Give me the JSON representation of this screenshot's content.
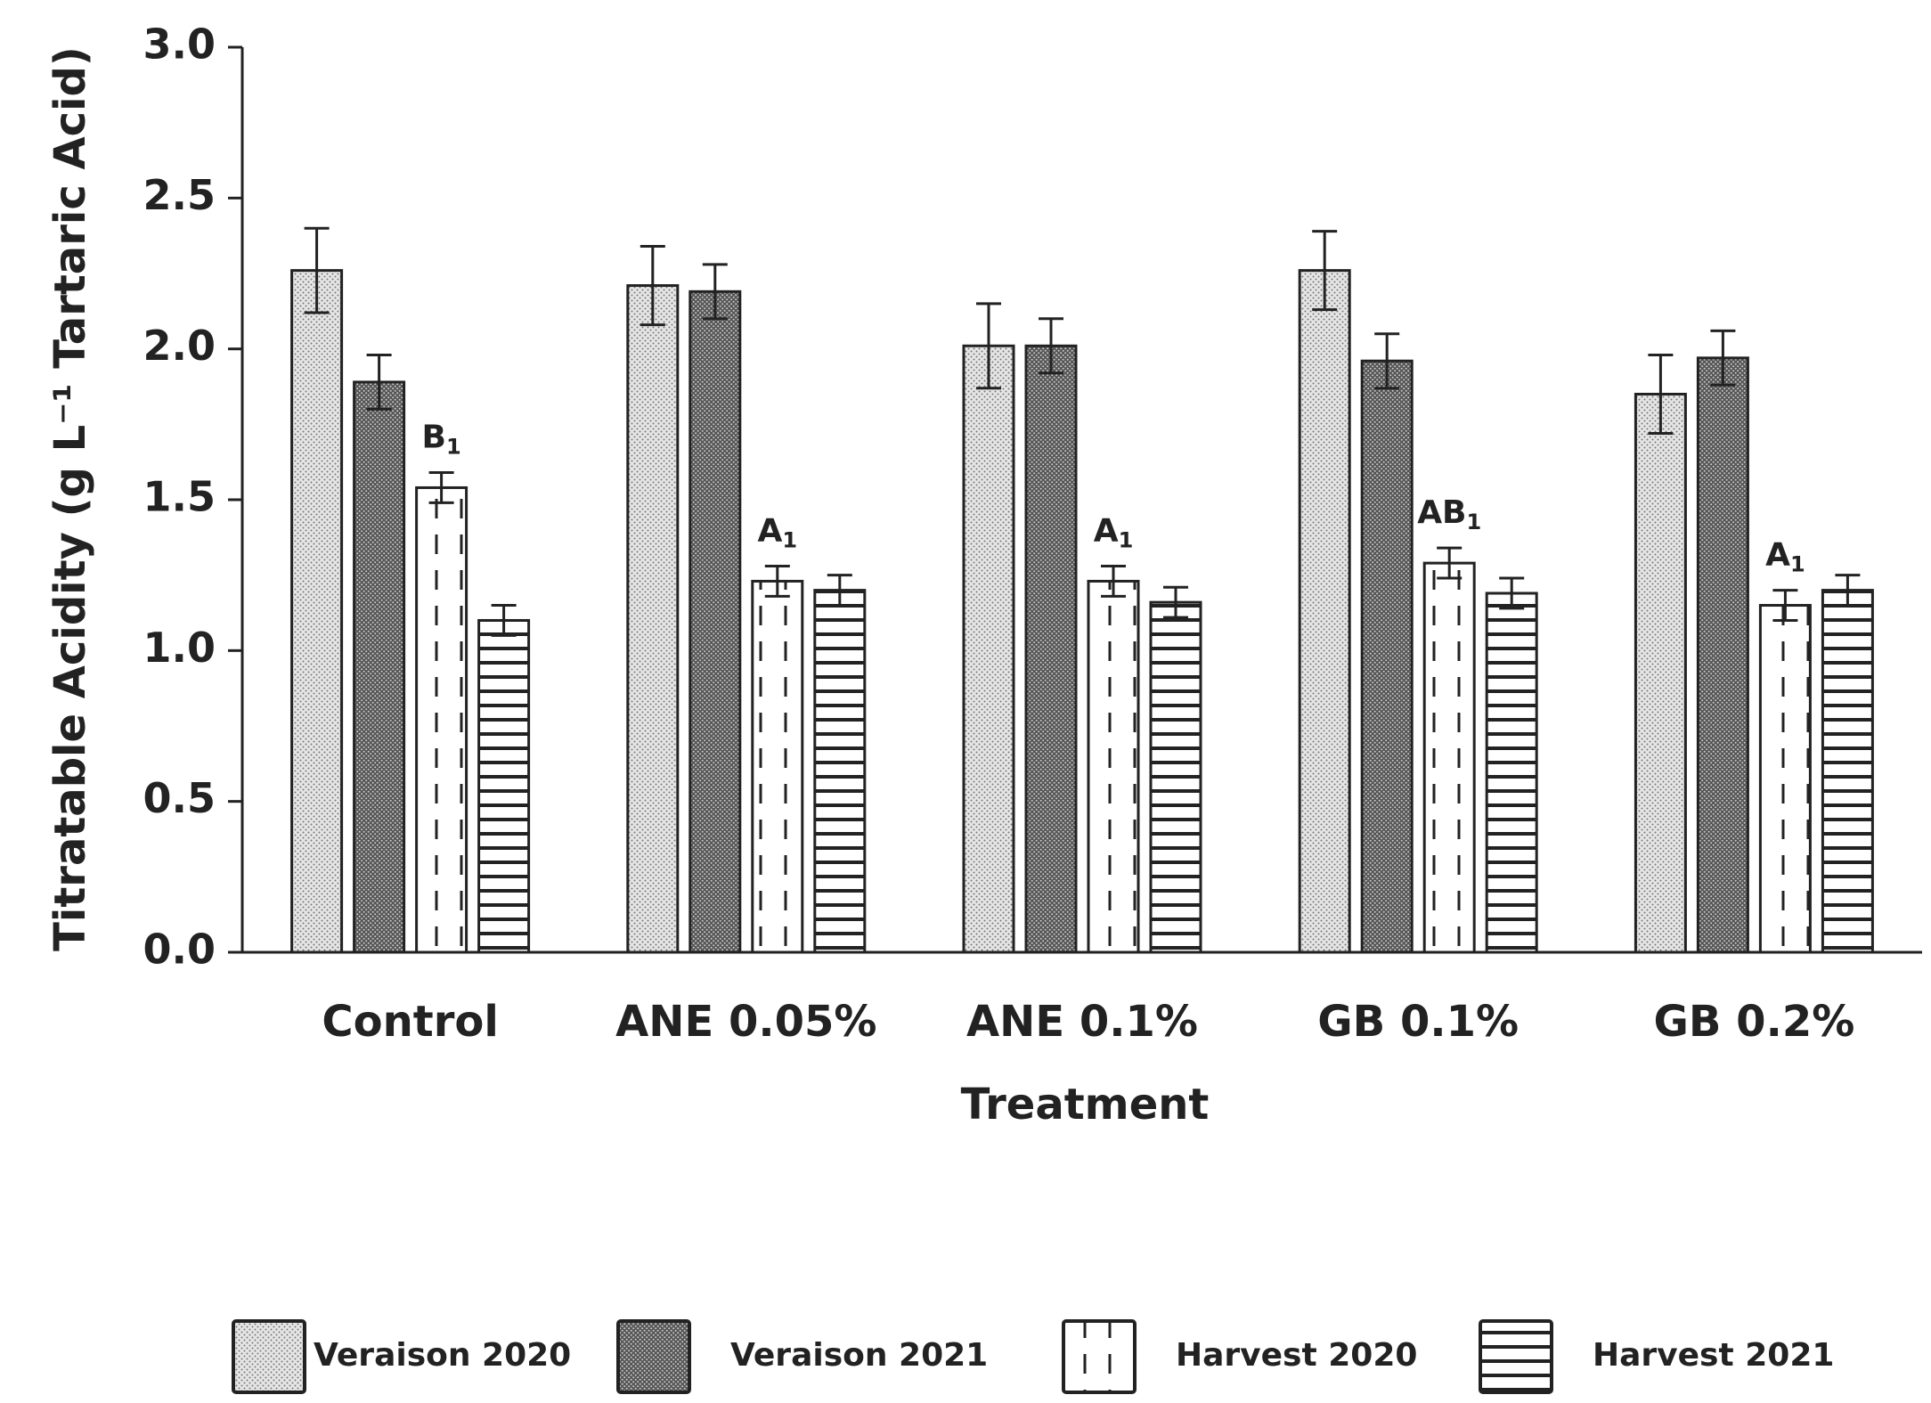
{
  "chart_data": {
    "type": "bar",
    "x_label": "Treatment",
    "y_label": "Titratable Acidity (g L⁻¹ Tartaric Acid)",
    "categories": [
      "Control",
      "ANE 0.05%",
      "ANE 0.1%",
      "GB 0.1%",
      "GB 0.2%"
    ],
    "series": [
      {
        "name": "Veraison 2020",
        "color": "#d9d9d9",
        "pattern": "light-dots",
        "values": [
          2.26,
          2.21,
          2.01,
          2.26,
          1.85
        ],
        "errors": [
          0.14,
          0.13,
          0.14,
          0.13,
          0.13
        ]
      },
      {
        "name": "Veraison 2021",
        "color": "#8c8c8c",
        "pattern": "dark-dots",
        "values": [
          1.89,
          2.19,
          2.01,
          1.96,
          1.97
        ],
        "errors": [
          0.09,
          0.09,
          0.09,
          0.09,
          0.09
        ]
      },
      {
        "name": "Harvest 2020",
        "color": "#ffffff",
        "pattern": "dashed-vertical",
        "values": [
          1.54,
          1.23,
          1.23,
          1.29,
          1.15
        ],
        "errors": [
          0.05,
          0.05,
          0.05,
          0.05,
          0.05
        ],
        "labels": [
          {
            "text": "B",
            "sub": "1"
          },
          {
            "text": "A",
            "sub": "1"
          },
          {
            "text": "A",
            "sub": "1"
          },
          {
            "text": "AB",
            "sub": "1"
          },
          {
            "text": "A",
            "sub": "1"
          }
        ]
      },
      {
        "name": "Harvest 2021",
        "color": "#ffffff",
        "pattern": "horizontal-lines",
        "values": [
          1.1,
          1.2,
          1.16,
          1.19,
          1.2
        ],
        "errors": [
          0.05,
          0.05,
          0.05,
          0.05,
          0.05
        ]
      }
    ],
    "ylim": [
      0,
      3
    ],
    "yticks": [
      {
        "value": 0,
        "label": "0.0"
      },
      0.5,
      {
        "value": 1,
        "label": "1.0"
      },
      1.5,
      {
        "value": 2,
        "label": "2.0"
      },
      2.5,
      {
        "value": 3,
        "label": "3.0"
      }
    ],
    "grid": false,
    "legend": "bottom"
  }
}
